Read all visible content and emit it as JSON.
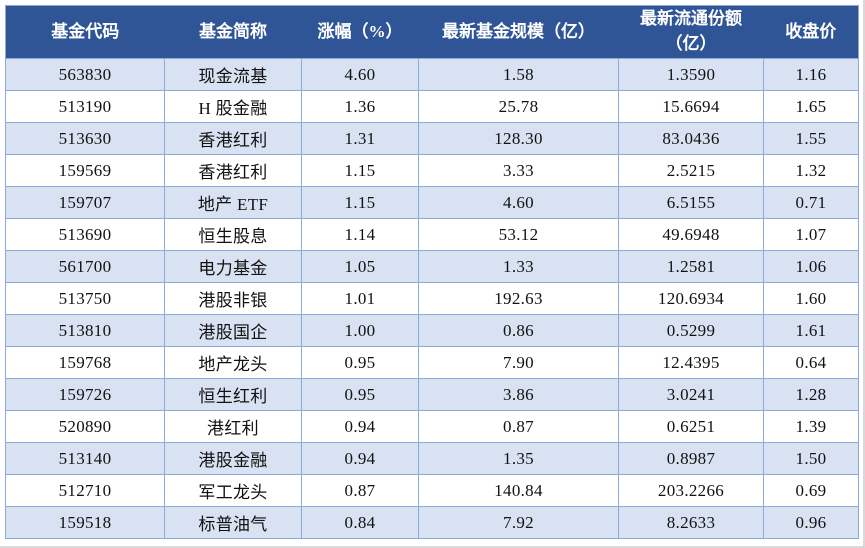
{
  "colors": {
    "header_bg": "#2F5597",
    "header_text": "#FFFFFF",
    "row_alt_bg": "#D9E2F3",
    "border": "#8EAADB",
    "body_text": "#111111"
  },
  "header_display": [
    "基金代码",
    "基金简称",
    "涨幅（%）",
    "最新基金规模（亿）",
    "最新流通份额（亿）",
    "收盘价"
  ],
  "chart_data": {
    "type": "table",
    "title": "",
    "columns": [
      "基金代码",
      "基金简称",
      "涨幅（%）",
      "最新基金规模（亿）",
      "最新流通份额（亿）",
      "收盘价"
    ],
    "rows": [
      [
        "563830",
        "现金流基",
        "4.60",
        "1.58",
        "1.3590",
        "1.16"
      ],
      [
        "513190",
        "H 股金融",
        "1.36",
        "25.78",
        "15.6694",
        "1.65"
      ],
      [
        "513630",
        "香港红利",
        "1.31",
        "128.30",
        "83.0436",
        "1.55"
      ],
      [
        "159569",
        "香港红利",
        "1.15",
        "3.33",
        "2.5215",
        "1.32"
      ],
      [
        "159707",
        "地产 ETF",
        "1.15",
        "4.60",
        "6.5155",
        "0.71"
      ],
      [
        "513690",
        "恒生股息",
        "1.14",
        "53.12",
        "49.6948",
        "1.07"
      ],
      [
        "561700",
        "电力基金",
        "1.05",
        "1.33",
        "1.2581",
        "1.06"
      ],
      [
        "513750",
        "港股非银",
        "1.01",
        "192.63",
        "120.6934",
        "1.60"
      ],
      [
        "513810",
        "港股国企",
        "1.00",
        "0.86",
        "0.5299",
        "1.61"
      ],
      [
        "159768",
        "地产龙头",
        "0.95",
        "7.90",
        "12.4395",
        "0.64"
      ],
      [
        "159726",
        "恒生红利",
        "0.95",
        "3.86",
        "3.0241",
        "1.28"
      ],
      [
        "520890",
        "港红利",
        "0.94",
        "0.87",
        "0.6251",
        "1.39"
      ],
      [
        "513140",
        "港股金融",
        "0.94",
        "1.35",
        "0.8987",
        "1.50"
      ],
      [
        "512710",
        "军工龙头",
        "0.87",
        "140.84",
        "203.2266",
        "0.69"
      ],
      [
        "159518",
        "标普油气",
        "0.84",
        "7.92",
        "8.2633",
        "0.96"
      ]
    ]
  }
}
